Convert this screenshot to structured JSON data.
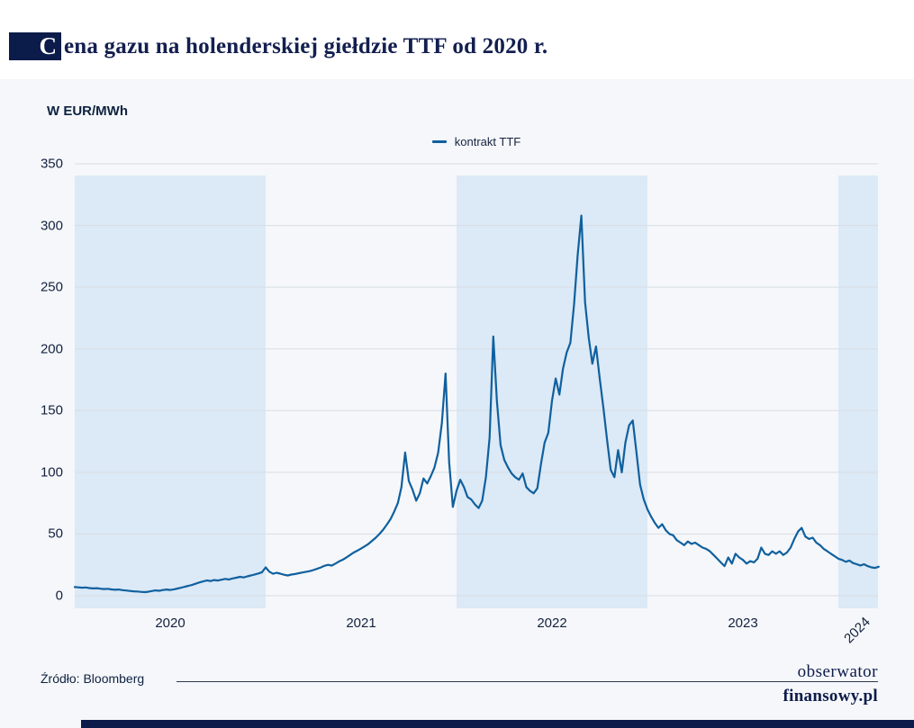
{
  "title": {
    "first_letter": "C",
    "rest": "ena gazu na holenderskiej giełdzie TTF od 2020 r."
  },
  "unit_label": "W EUR/MWh",
  "legend": {
    "label": "kontrakt TTF"
  },
  "footer": {
    "source": "Źródło: Bloomberg",
    "logo_line1": "obserwator",
    "logo_line2": "finansowy.pl"
  },
  "colors": {
    "line": "#0f609e",
    "band": "#dce9f6",
    "panel": "#f5f7fa",
    "grid": "#d8dde4",
    "text": "#14213f",
    "navy": "#0d1b4b"
  },
  "chart_data": {
    "type": "line",
    "title": "Cena gazu na holenderskiej giełdzie TTF od 2020 r.",
    "ylabel": "W EUR/MWh",
    "series_name": "kontrakt TTF",
    "ylim": [
      0,
      350
    ],
    "yticks": [
      0,
      50,
      100,
      150,
      200,
      250,
      300,
      350
    ],
    "x_start_year": 2020,
    "x_step_years": 0.0192308,
    "x_year_labels": [
      "2020",
      "2021",
      "2022",
      "2023",
      "2024"
    ],
    "shaded_years": [
      2020,
      2022,
      2024
    ],
    "legend_position": "top-center",
    "grid": "horizontal",
    "values": [
      7.0,
      6.8,
      6.5,
      6.7,
      6.2,
      5.9,
      6.1,
      5.7,
      5.4,
      5.6,
      5.1,
      4.8,
      5.0,
      4.5,
      4.2,
      3.9,
      3.6,
      3.4,
      3.1,
      2.9,
      3.2,
      3.8,
      4.3,
      4.0,
      4.6,
      5.0,
      4.7,
      5.2,
      5.8,
      6.5,
      7.3,
      8.0,
      8.8,
      9.8,
      10.8,
      11.6,
      12.4,
      11.9,
      12.7,
      12.3,
      13.0,
      13.6,
      13.1,
      14.0,
      14.6,
      15.3,
      14.8,
      15.7,
      16.4,
      17.2,
      18.0,
      19.0,
      23.0,
      19.5,
      17.8,
      18.6,
      17.9,
      17.0,
      16.4,
      17.1,
      17.6,
      18.2,
      18.8,
      19.4,
      19.9,
      20.8,
      21.8,
      22.9,
      24.2,
      25.0,
      24.4,
      26.0,
      27.8,
      29.2,
      31.0,
      33.0,
      35.0,
      36.5,
      38.2,
      40.0,
      42.0,
      44.5,
      47.0,
      50.0,
      53.5,
      57.5,
      62.0,
      68.0,
      75.0,
      88.0,
      116.0,
      93.0,
      86.0,
      77.0,
      83.0,
      95.0,
      91.0,
      97.0,
      104.0,
      116.0,
      140.0,
      180.0,
      108.0,
      72.0,
      85.0,
      94.0,
      88.0,
      80.0,
      78.0,
      74.0,
      71.0,
      77.0,
      96.0,
      128.0,
      210.0,
      158.0,
      122.0,
      110.0,
      104.0,
      99.0,
      96.0,
      94.0,
      99.0,
      88.0,
      85.0,
      83.0,
      87.0,
      107.0,
      124.0,
      132.0,
      158.0,
      176.0,
      163.0,
      184.0,
      197.0,
      205.0,
      236.0,
      276.0,
      308.0,
      238.0,
      209.0,
      188.0,
      202.0,
      176.0,
      152.0,
      126.0,
      102.0,
      96.0,
      118.0,
      100.0,
      124.0,
      138.0,
      142.0,
      116.0,
      90.0,
      78.0,
      70.0,
      64.0,
      59.0,
      55.0,
      58.0,
      53.0,
      50.0,
      49.0,
      45.0,
      43.0,
      41.0,
      44.0,
      42.0,
      43.0,
      41.0,
      39.0,
      38.0,
      36.0,
      33.0,
      30.0,
      27.0,
      24.0,
      31.0,
      26.0,
      34.0,
      31.0,
      29.0,
      26.0,
      28.0,
      27.0,
      30.0,
      39.0,
      34.0,
      33.0,
      36.0,
      34.0,
      36.0,
      33.0,
      35.0,
      39.0,
      46.0,
      52.0,
      55.0,
      48.0,
      46.0,
      47.0,
      43.0,
      41.0,
      38.0,
      36.0,
      34.0,
      32.0,
      30.0,
      29.0,
      27.5,
      28.5,
      26.5,
      25.5,
      24.5,
      25.5,
      24.0,
      23.0,
      22.5,
      23.5
    ]
  }
}
